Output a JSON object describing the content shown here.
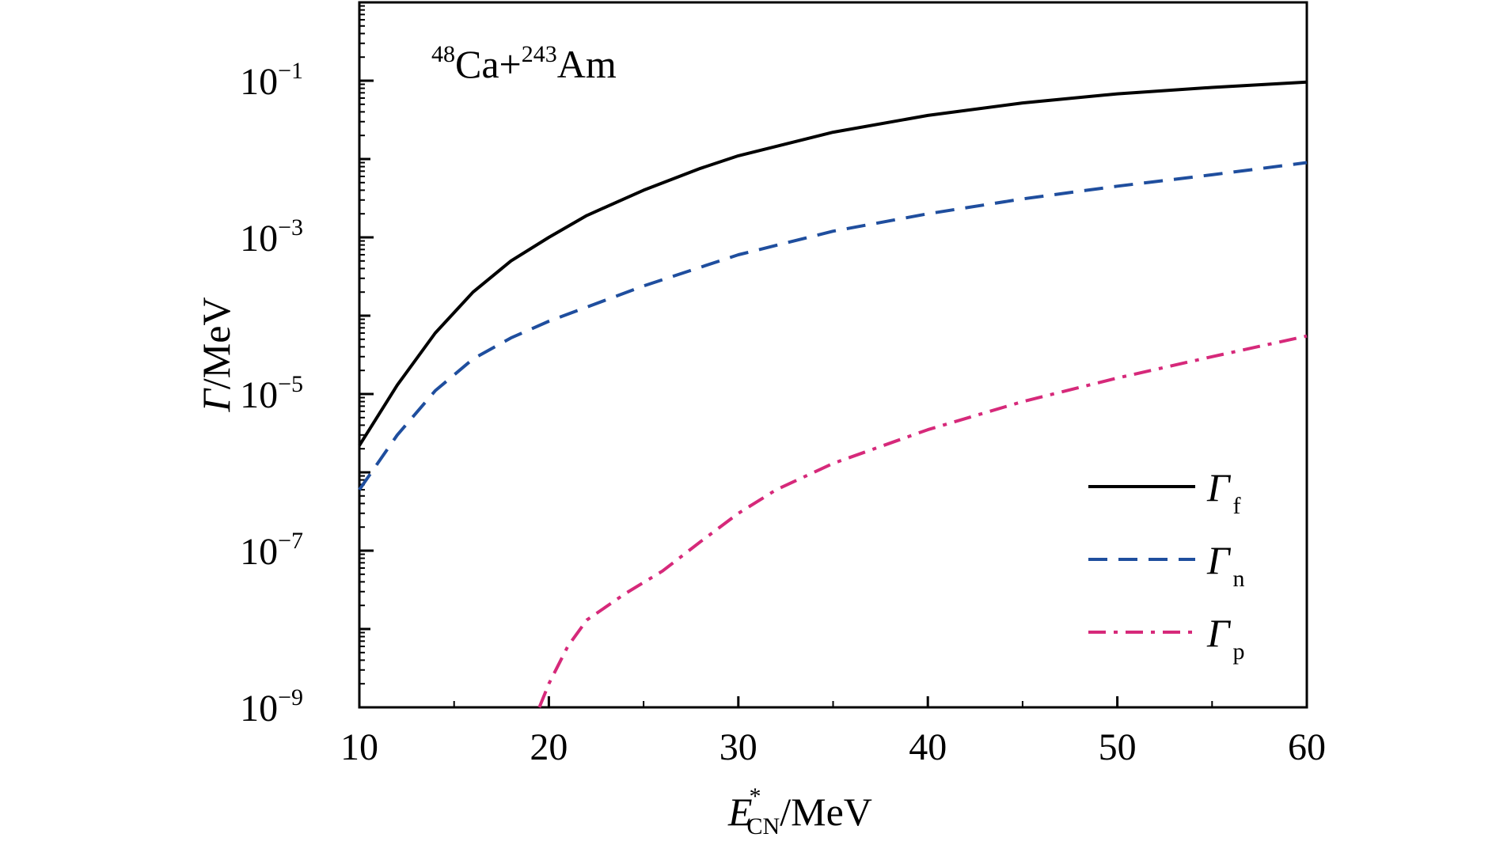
{
  "chart_data": {
    "type": "line",
    "annotation": {
      "target_mass": "48",
      "target": "Ca+",
      "projectile_mass": "243",
      "projectile": "Am"
    },
    "xlabel": {
      "main": "E",
      "superscript": "*",
      "subscript": "CN",
      "unit": "/MeV"
    },
    "ylabel": {
      "symbol": "Γ",
      "unit": "/MeV"
    },
    "xlim": [
      10,
      60
    ],
    "ylim": [
      1e-09,
      1
    ],
    "yscale": "log",
    "x_ticks": [
      "10",
      "20",
      "30",
      "40",
      "50",
      "60"
    ],
    "y_ticks": [
      {
        "base": "10",
        "exp": "−1",
        "value": 0.1
      },
      {
        "base": "10",
        "exp": "−3",
        "value": 0.001
      },
      {
        "base": "10",
        "exp": "−5",
        "value": 1e-05
      },
      {
        "base": "10",
        "exp": "−7",
        "value": 1e-07
      },
      {
        "base": "10",
        "exp": "−9",
        "value": 1e-09
      }
    ],
    "legend_position": "bottom-right",
    "series": [
      {
        "name": "Γf",
        "symbol": "Γ",
        "sub": "f",
        "color": "#000000",
        "dash": "solid",
        "x": [
          10,
          12,
          14,
          16,
          18,
          20,
          22,
          25,
          28,
          30,
          35,
          40,
          45,
          50,
          55,
          60
        ],
        "y": [
          2.2e-06,
          1.3e-05,
          6e-05,
          0.0002,
          0.0005,
          0.001,
          0.0019,
          0.004,
          0.0076,
          0.011,
          0.022,
          0.036,
          0.052,
          0.068,
          0.082,
          0.096
        ]
      },
      {
        "name": "Γn",
        "symbol": "Γ",
        "sub": "n",
        "color": "#1f4e9e",
        "dash": "dashed",
        "x": [
          10,
          12,
          14,
          16,
          18,
          20,
          25,
          30,
          35,
          40,
          45,
          50,
          55,
          60
        ],
        "y": [
          6e-07,
          3e-06,
          1.1e-05,
          2.8e-05,
          5.2e-05,
          8.5e-05,
          0.00024,
          0.0006,
          0.0012,
          0.002,
          0.0031,
          0.0045,
          0.0063,
          0.009
        ]
      },
      {
        "name": "Γp",
        "symbol": "Γ",
        "sub": "p",
        "color": "#d6297a",
        "dash": "dashdot",
        "x": [
          19.5,
          20,
          21,
          22,
          24,
          26,
          28,
          30,
          32,
          35,
          40,
          45,
          50,
          55,
          60
        ],
        "y": [
          1e-09,
          2e-09,
          6e-09,
          1.3e-08,
          2.8e-08,
          5.5e-08,
          1.3e-07,
          3e-07,
          6e-07,
          1.3e-06,
          3.5e-06,
          8e-06,
          1.6e-05,
          3e-05,
          5.5e-05
        ]
      }
    ]
  }
}
